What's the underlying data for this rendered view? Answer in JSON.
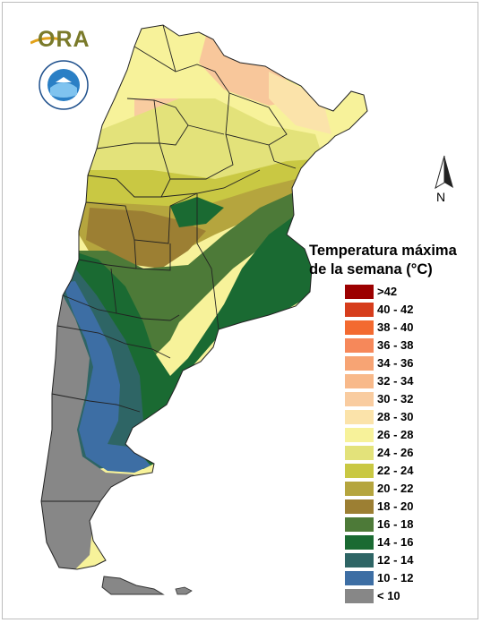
{
  "logo": {
    "text": "ORA"
  },
  "seal": {
    "ring_text": "SERVICIO METEOROLOGICO NACIONAL · ARGENTINA"
  },
  "north_arrow": {
    "label": "N"
  },
  "legend": {
    "title_line1": "Temperatura máxima",
    "title_line2": "de la semana (°C)",
    "items": [
      {
        "label": ">42",
        "color": "#9c0000"
      },
      {
        "label": "40 - 42",
        "color": "#d63d1c"
      },
      {
        "label": "38 - 40",
        "color": "#f36a30"
      },
      {
        "label": "36 - 38",
        "color": "#f6885a"
      },
      {
        "label": "34 - 36",
        "color": "#f7a474"
      },
      {
        "label": "32 - 34",
        "color": "#f8b98a"
      },
      {
        "label": "30 - 32",
        "color": "#f9cca0"
      },
      {
        "label": "28 - 30",
        "color": "#fbe3aa"
      },
      {
        "label": "26 - 28",
        "color": "#f7f29a"
      },
      {
        "label": "24 - 26",
        "color": "#e3e27a"
      },
      {
        "label": "22 - 24",
        "color": "#c9c843"
      },
      {
        "label": "20 - 22",
        "color": "#b5a53e"
      },
      {
        "label": "18 - 20",
        "color": "#9c7f33"
      },
      {
        "label": "16 - 18",
        "color": "#4d7a38"
      },
      {
        "label": "14 - 16",
        "color": "#1a6a32"
      },
      {
        "label": "12 - 14",
        "color": "#2e6565"
      },
      {
        "label": "10 - 12",
        "color": "#3d6ea4"
      },
      {
        "label": "< 10",
        "color": "#878787"
      }
    ]
  }
}
